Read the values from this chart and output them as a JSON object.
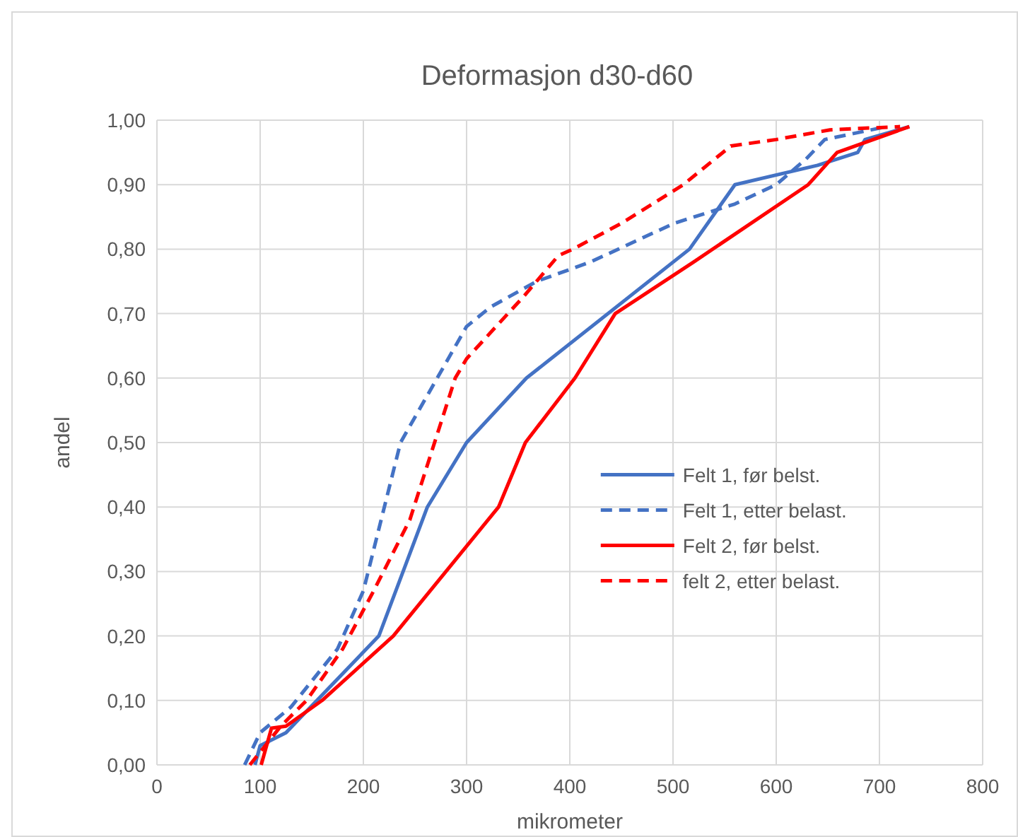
{
  "chart_data": {
    "type": "line",
    "title": "Deformasjon d30-d60",
    "xlabel": "mikrometer",
    "ylabel": "andel",
    "xlim": [
      0,
      800
    ],
    "xticks": [
      0,
      100,
      200,
      300,
      400,
      500,
      600,
      700,
      800
    ],
    "ylim": [
      0,
      1
    ],
    "yticks": [
      {
        "value": 0,
        "label": "0,00"
      },
      {
        "value": 0.1,
        "label": "0,10"
      },
      {
        "value": 0.2,
        "label": "0,20"
      },
      {
        "value": 0.3,
        "label": "0,30"
      },
      {
        "value": 0.4,
        "label": "0,40"
      },
      {
        "value": 0.5,
        "label": "0,50"
      },
      {
        "value": 0.6,
        "label": "0,60"
      },
      {
        "value": 0.7,
        "label": "0,70"
      },
      {
        "value": 0.8,
        "label": "0,80"
      },
      {
        "value": 0.9,
        "label": "0,90"
      },
      {
        "value": 1,
        "label": "1,00"
      }
    ],
    "grid": true,
    "legend": "right",
    "marker": "none",
    "series": [
      {
        "name": "Felt 1, før belst.",
        "color": "#4472c4",
        "line_style": "solid",
        "x": [
          95,
          100,
          125,
          215,
          262,
          300,
          358,
          516,
          560,
          640,
          679,
          686,
          729
        ],
        "values": [
          0,
          0.03,
          0.05,
          0.2,
          0.4,
          0.5,
          0.6,
          0.8,
          0.9,
          0.93,
          0.95,
          0.97,
          0.99
        ]
      },
      {
        "name": "Felt 1, etter belast.",
        "color": "#4472c4",
        "line_style": "dashed",
        "x": [
          85,
          100,
          130,
          175,
          200,
          236,
          300,
          323,
          368,
          420,
          501,
          560,
          600,
          629,
          647,
          707
        ],
        "values": [
          0,
          0.05,
          0.09,
          0.18,
          0.27,
          0.5,
          0.68,
          0.71,
          0.75,
          0.78,
          0.84,
          0.87,
          0.9,
          0.94,
          0.97,
          0.99
        ]
      },
      {
        "name": "Felt 2, før belst.",
        "color": "#ff0000",
        "line_style": "solid",
        "x": [
          101,
          111,
          125,
          160,
          229,
          331,
          357,
          405,
          444,
          520,
          631,
          659,
          729
        ],
        "values": [
          0,
          0.057,
          0.06,
          0.1,
          0.2,
          0.4,
          0.5,
          0.6,
          0.7,
          0.78,
          0.9,
          0.95,
          0.99
        ]
      },
      {
        "name": "felt 2, etter belast.",
        "color": "#ff0000",
        "line_style": "dashed",
        "x": [
          90,
          100,
          120,
          145,
          180,
          210,
          245,
          289,
          300,
          355,
          389,
          403,
          450,
          510,
          556,
          600,
          652,
          720
        ],
        "values": [
          0,
          0.02,
          0.06,
          0.1,
          0.18,
          0.27,
          0.38,
          0.6,
          0.63,
          0.726,
          0.79,
          0.8,
          0.84,
          0.9,
          0.96,
          0.97,
          0.985,
          0.99
        ]
      }
    ]
  }
}
